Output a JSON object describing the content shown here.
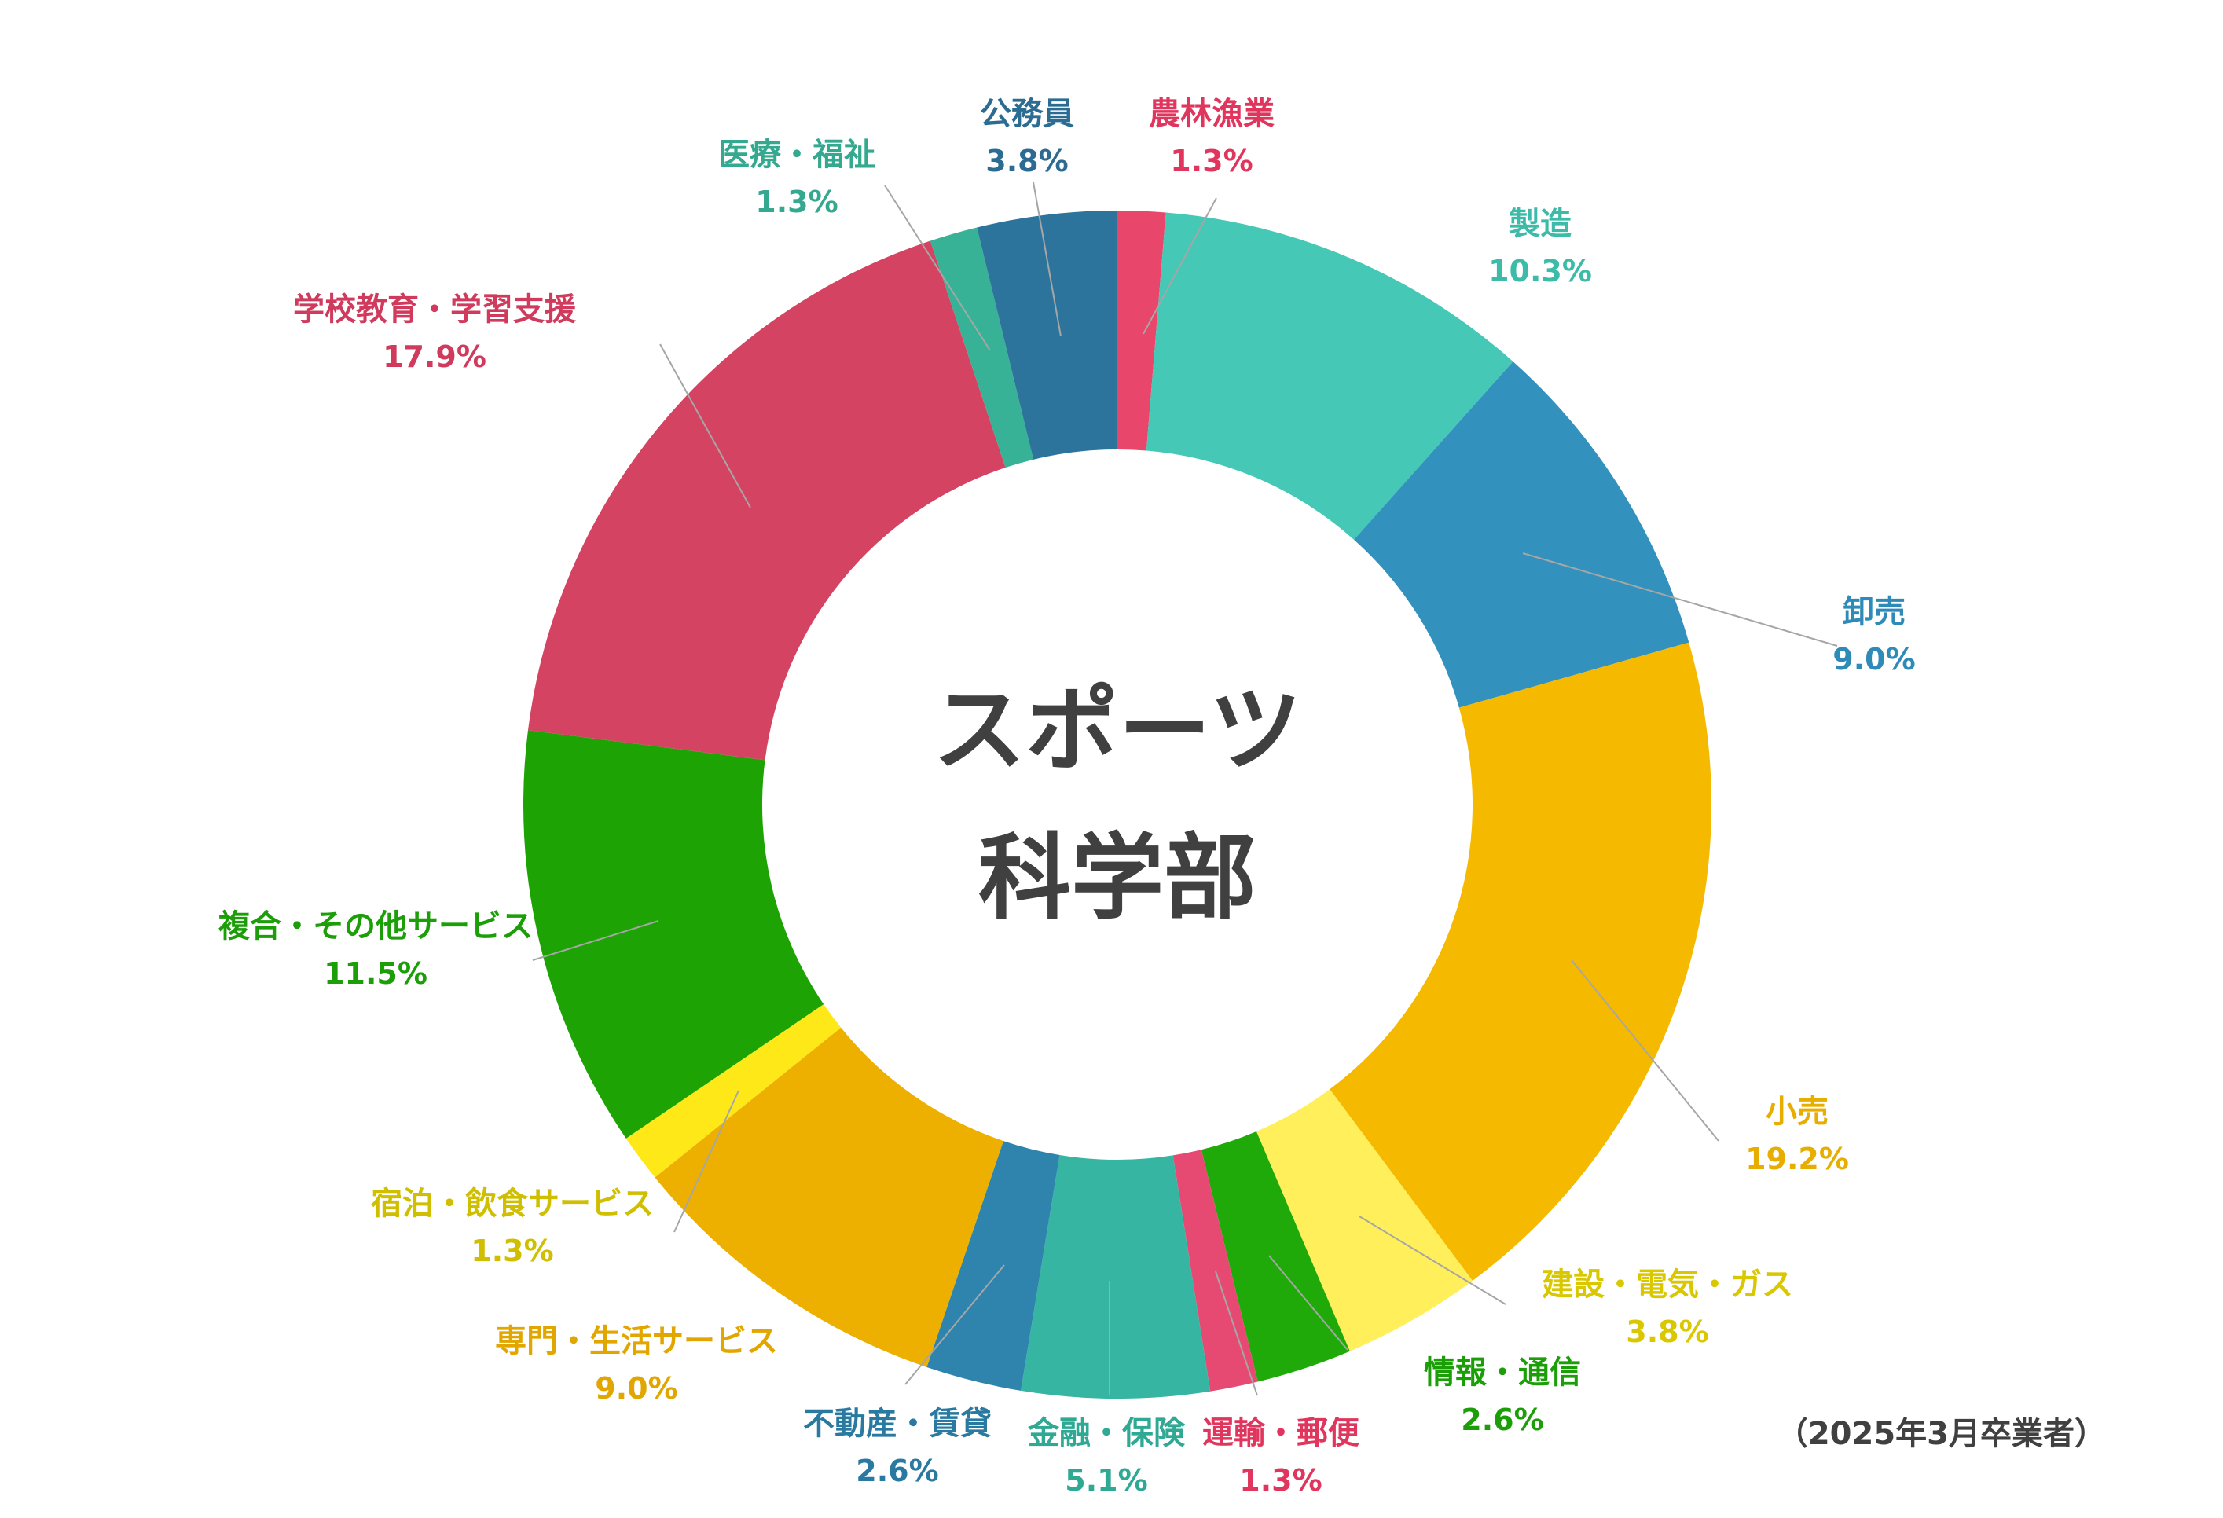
{
  "chart_data": {
    "type": "donut",
    "center_title": [
      "スポーツ",
      "科学部"
    ],
    "note": "（2025年3月卒業者）",
    "unit": "%",
    "slices": [
      {
        "name": "農林漁業",
        "value": 1.3,
        "value_label": "1.3%",
        "color": "#E8466A",
        "label_color": "#E0365E"
      },
      {
        "name": "製造",
        "value": 10.3,
        "value_label": "10.3%",
        "color": "#45C8B6",
        "label_color": "#3DBBA9"
      },
      {
        "name": "卸売",
        "value": 9.0,
        "value_label": "9.0%",
        "color": "#3391BE",
        "label_color": "#2E8BB8"
      },
      {
        "name": "小売",
        "value": 19.2,
        "value_label": "19.2%",
        "color": "#F5B900",
        "label_color": "#E7AE00"
      },
      {
        "name": "建設・電気・ガス",
        "value": 3.8,
        "value_label": "3.8%",
        "color": "#FFEF5A",
        "label_color": "#D9C700"
      },
      {
        "name": "情報・通信",
        "value": 2.6,
        "value_label": "2.6%",
        "color": "#1FAA0A",
        "label_color": "#1C9E09"
      },
      {
        "name": "運輸・郵便",
        "value": 1.3,
        "value_label": "1.3%",
        "color": "#E64A72",
        "label_color": "#E0365E"
      },
      {
        "name": "金融・保険",
        "value": 5.1,
        "value_label": "5.1%",
        "color": "#36B5A2",
        "label_color": "#2FA894"
      },
      {
        "name": "不動産・賃貸",
        "value": 2.6,
        "value_label": "2.6%",
        "color": "#2E84AD",
        "label_color": "#2A79A0"
      },
      {
        "name": "専門・生活サービス",
        "value": 9.0,
        "value_label": "9.0%",
        "color": "#EDB000",
        "label_color": "#E2A600"
      },
      {
        "name": "宿泊・飲食サービス",
        "value": 1.3,
        "value_label": "1.3%",
        "color": "#FFE817",
        "label_color": "#CFBF00"
      },
      {
        "name": "複合・その他サービス",
        "value": 11.5,
        "value_label": "11.5%",
        "color": "#1EA305",
        "label_color": "#1C9E09"
      },
      {
        "name": "学校教育・学習支援",
        "value": 17.9,
        "value_label": "17.9%",
        "color": "#D44362",
        "label_color": "#D03A5C"
      },
      {
        "name": "医療・福祉",
        "value": 1.3,
        "value_label": "1.3%",
        "color": "#38B296",
        "label_color": "#34A98F"
      },
      {
        "name": "公務員",
        "value": 3.8,
        "value_label": "3.8%",
        "color": "#2D749C",
        "label_color": "#2D6C92"
      }
    ]
  }
}
